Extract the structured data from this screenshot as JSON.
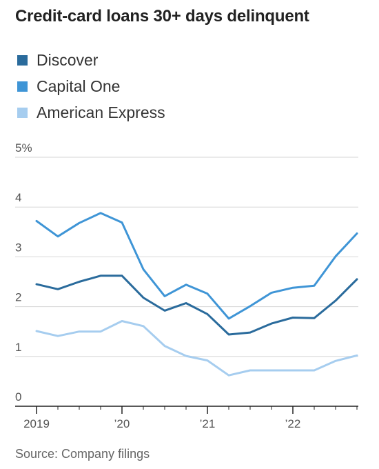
{
  "chart_data": {
    "type": "line",
    "title": "Credit-card loans 30+ days delinquent",
    "y_tick_labels": [
      "0",
      "1",
      "2",
      "3",
      "4",
      "5%"
    ],
    "ylim": [
      0,
      5
    ],
    "x_tick_labels": [
      "2019",
      "’20",
      "’21",
      "’22"
    ],
    "xlim": [
      2019.0,
      2022.75
    ],
    "x_ticks": [
      2019.0,
      2020.0,
      2021.0,
      2022.0
    ],
    "x": [
      2019.0,
      2019.25,
      2019.5,
      2019.75,
      2020.0,
      2020.25,
      2020.5,
      2020.75,
      2021.0,
      2021.25,
      2021.5,
      2021.75,
      2022.0,
      2022.25,
      2022.5,
      2022.75
    ],
    "series": [
      {
        "name": "Discover",
        "color": "#2a6b9c",
        "values": [
          2.45,
          2.35,
          2.5,
          2.62,
          2.62,
          2.18,
          1.92,
          2.07,
          1.85,
          1.44,
          1.48,
          1.66,
          1.78,
          1.77,
          2.12,
          2.55
        ]
      },
      {
        "name": "Capital One",
        "color": "#3f95d6",
        "values": [
          3.72,
          3.41,
          3.68,
          3.88,
          3.69,
          2.75,
          2.21,
          2.44,
          2.26,
          1.76,
          2.01,
          2.28,
          2.38,
          2.42,
          3.01,
          3.47
        ]
      },
      {
        "name": "American Express",
        "color": "#a6cdef",
        "values": [
          1.51,
          1.41,
          1.5,
          1.5,
          1.71,
          1.61,
          1.21,
          1.01,
          0.92,
          0.62,
          0.72,
          0.72,
          0.72,
          0.72,
          0.91,
          1.02
        ]
      }
    ],
    "grid": true,
    "legend_position": "top-left"
  },
  "source": "Source: Company filings"
}
